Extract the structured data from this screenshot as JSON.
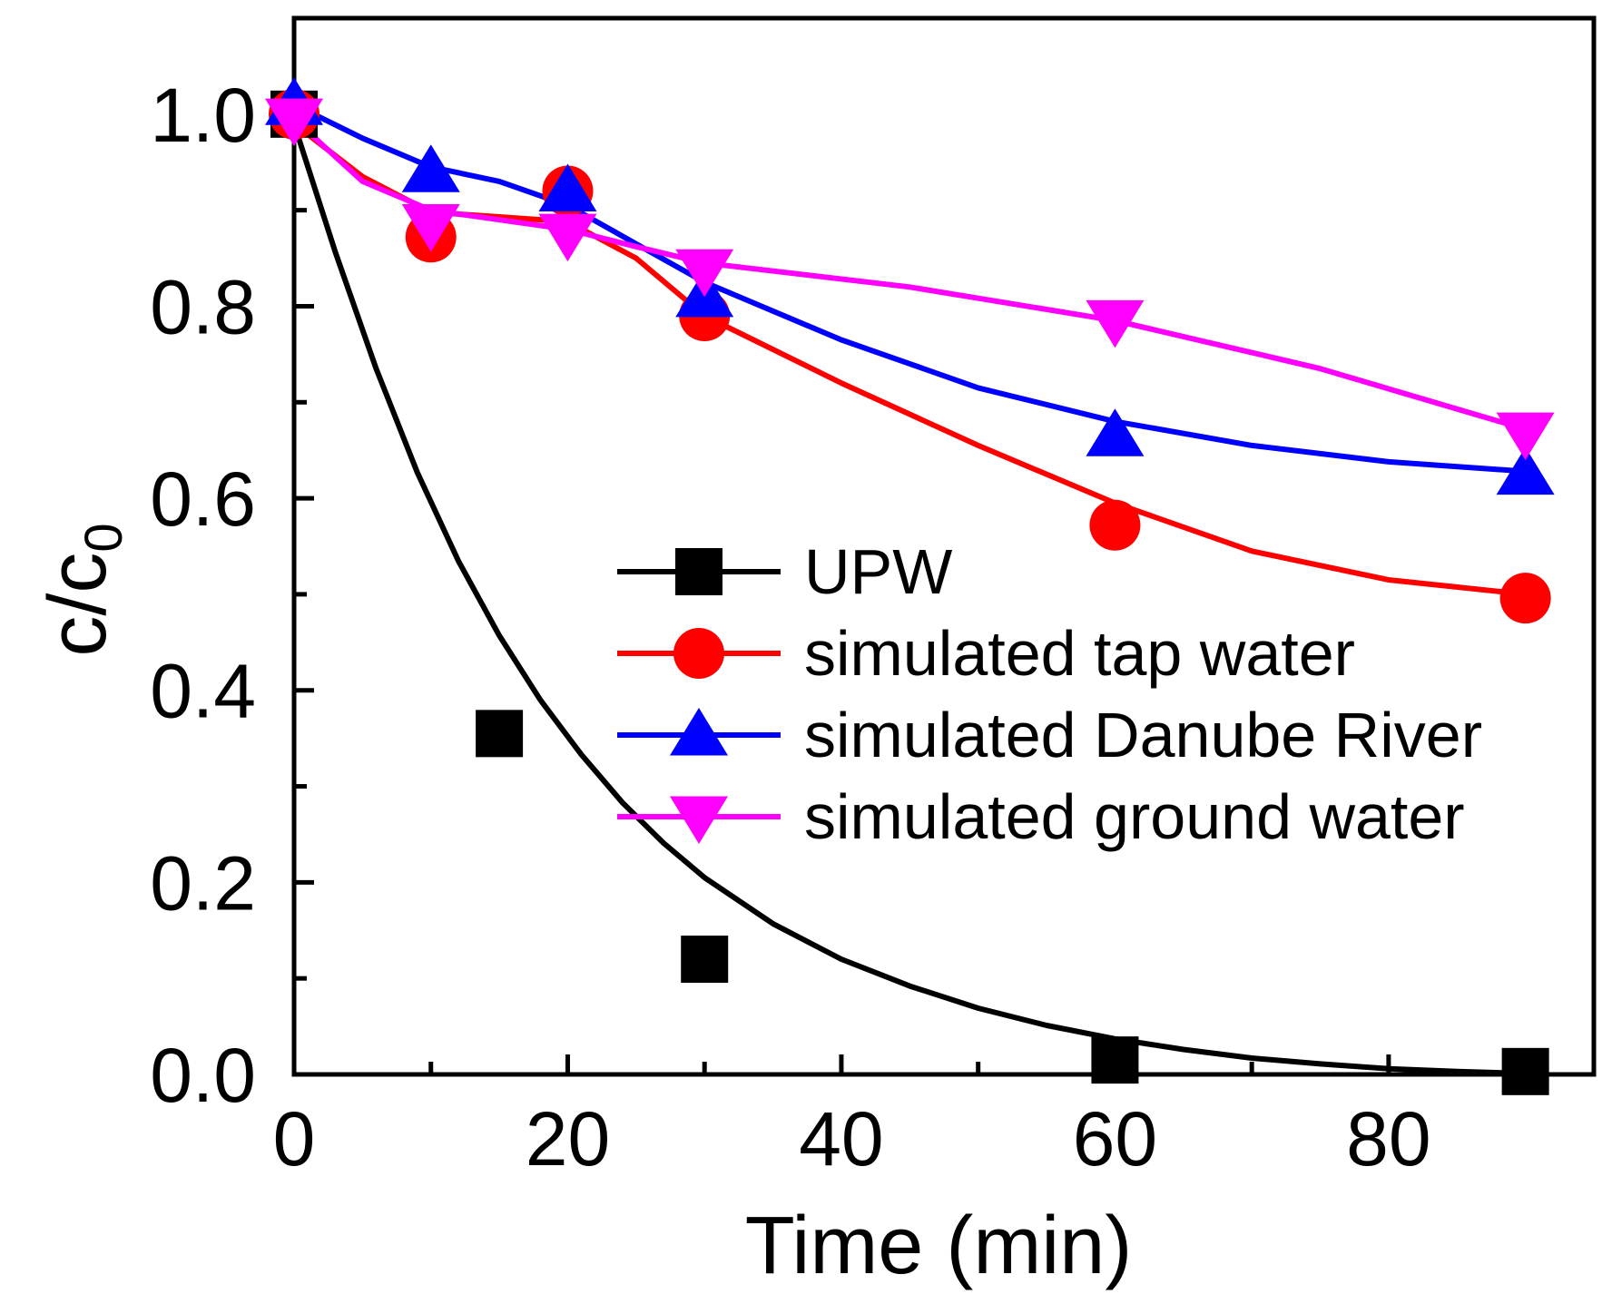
{
  "chart_data": {
    "type": "line",
    "title": "",
    "xlabel": "Time (min)",
    "ylabel": "c/c",
    "ylabel_subscript": "0",
    "xlim": [
      0,
      95
    ],
    "ylim": [
      0,
      1.1
    ],
    "xticks": [
      0,
      20,
      40,
      60,
      80
    ],
    "yticks": [
      0.0,
      0.2,
      0.4,
      0.6,
      0.8,
      1.0
    ],
    "xtick_labels": [
      "0",
      "20",
      "40",
      "60",
      "80"
    ],
    "ytick_labels": [
      "0.0",
      "0.2",
      "0.4",
      "0.6",
      "0.8",
      "1.0"
    ],
    "grid": false,
    "legend_position": "center-right",
    "series": [
      {
        "name": "UPW",
        "color": "#000000",
        "marker": "square",
        "x": [
          0,
          15,
          30,
          60,
          90
        ],
        "y": [
          1.0,
          0.355,
          0.12,
          0.015,
          0.003
        ],
        "fit_x": [
          0,
          3,
          6,
          9,
          12,
          15,
          18,
          21,
          24,
          27,
          30,
          35,
          40,
          45,
          50,
          55,
          60,
          65,
          70,
          75,
          80,
          85,
          90
        ],
        "fit_y": [
          0.99,
          0.857,
          0.735,
          0.627,
          0.535,
          0.457,
          0.39,
          0.333,
          0.283,
          0.241,
          0.205,
          0.157,
          0.12,
          0.092,
          0.069,
          0.051,
          0.037,
          0.026,
          0.017,
          0.011,
          0.006,
          0.003,
          0.001
        ]
      },
      {
        "name": "simulated tap water",
        "color": "#ff0000",
        "marker": "circle",
        "x": [
          0,
          10,
          20,
          30,
          60,
          90
        ],
        "y": [
          1.0,
          0.872,
          0.92,
          0.79,
          0.572,
          0.496
        ],
        "fit_x": [
          0,
          5,
          10,
          15,
          20,
          25,
          30,
          40,
          50,
          60,
          70,
          80,
          90
        ],
        "fit_y": [
          0.99,
          0.935,
          0.898,
          0.893,
          0.888,
          0.85,
          0.79,
          0.72,
          0.655,
          0.595,
          0.545,
          0.515,
          0.5
        ]
      },
      {
        "name": "simulated Danube River",
        "color": "#0000ff",
        "marker": "triangle-up",
        "x": [
          0,
          10,
          20,
          30,
          60,
          90
        ],
        "y": [
          1.01,
          0.94,
          0.92,
          0.81,
          0.665,
          0.625
        ],
        "fit_x": [
          0,
          5,
          10,
          15,
          20,
          25,
          30,
          40,
          50,
          60,
          70,
          80,
          90
        ],
        "fit_y": [
          1.01,
          0.975,
          0.945,
          0.93,
          0.905,
          0.865,
          0.825,
          0.765,
          0.715,
          0.68,
          0.655,
          0.638,
          0.628
        ]
      },
      {
        "name": "simulated ground water",
        "color": "#ff00ff",
        "marker": "triangle-down",
        "x": [
          0,
          10,
          20,
          30,
          60,
          90
        ],
        "y": [
          0.995,
          0.885,
          0.875,
          0.838,
          0.785,
          0.668
        ],
        "fit_x": [
          0,
          5,
          10,
          15,
          20,
          25,
          30,
          45,
          60,
          75,
          90
        ],
        "fit_y": [
          0.995,
          0.93,
          0.9,
          0.89,
          0.88,
          0.862,
          0.845,
          0.82,
          0.785,
          0.735,
          0.672
        ]
      }
    ]
  }
}
